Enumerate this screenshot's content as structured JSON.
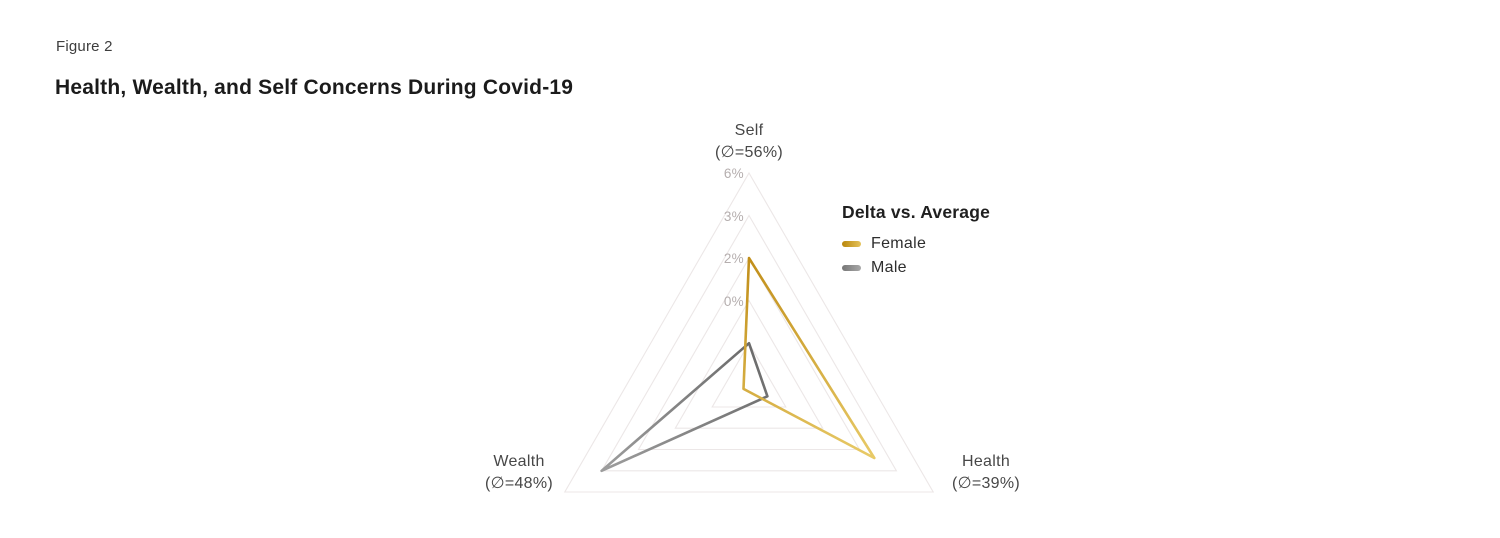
{
  "header": {
    "figure_label": "Figure 2",
    "title": "Health, Wealth, and Self Concerns During Covid-19"
  },
  "legend": {
    "title": "Delta vs. Average",
    "items": [
      {
        "label": "Female",
        "color": "#c9961d"
      },
      {
        "label": "Male",
        "color": "#8c8c8c"
      }
    ]
  },
  "chart_data": {
    "type": "radar",
    "shape": "triangle",
    "categories": [
      "Self",
      "Health",
      "Wealth"
    ],
    "axis_labels": [
      {
        "name": "Self",
        "average": "(∅=56%)"
      },
      {
        "name": "Health",
        "average": "(∅=39%)"
      },
      {
        "name": "Wealth",
        "average": "(∅=48%)"
      }
    ],
    "ticks": [
      "6%",
      "3%",
      "2%",
      "0%"
    ],
    "units": "% delta vs. average",
    "series": [
      {
        "name": "Female",
        "color_start": "#be8a14",
        "color_end": "#e8ca67",
        "values": [
          2.0,
          2.4,
          -3.7
        ]
      },
      {
        "name": "Male",
        "color_start": "#6b6b6b",
        "color_end": "#9e9e9e",
        "values": [
          -2.0,
          -3.0,
          3.0
        ]
      }
    ],
    "grid": "nested-triangles",
    "legend_position": "right"
  }
}
